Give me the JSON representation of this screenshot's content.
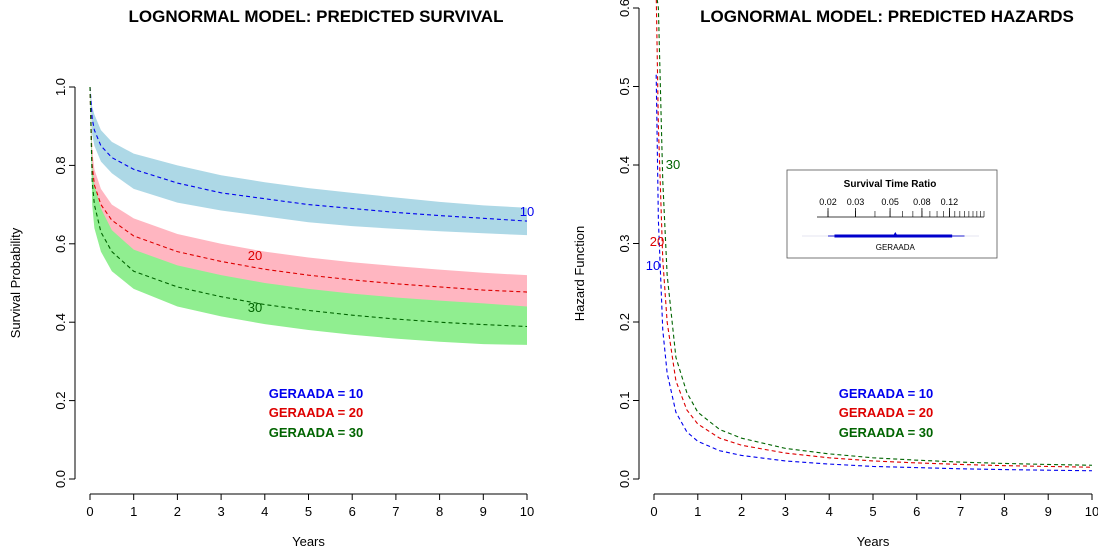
{
  "chart_data": [
    {
      "type": "line",
      "title": "LOGNORMAL MODEL: PREDICTED SURVIVAL",
      "xlabel": "Years",
      "ylabel": "Survival Probability",
      "xlim": [
        0,
        10
      ],
      "ylim": [
        0,
        1
      ],
      "xticks": [
        "0",
        "1",
        "2",
        "3",
        "4",
        "5",
        "6",
        "7",
        "8",
        "9",
        "10"
      ],
      "yticks": [
        "0.0",
        "0.2",
        "0.4",
        "0.6",
        "0.8",
        "1.0"
      ],
      "x": [
        0,
        0.05,
        0.1,
        0.25,
        0.5,
        1,
        2,
        3,
        4,
        5,
        6,
        7,
        8,
        9,
        10
      ],
      "series": [
        {
          "name": "GERAADA = 10",
          "color": "#0000ee",
          "band_color": "#add8e6",
          "curve_label": "10",
          "values": [
            1.0,
            0.92,
            0.89,
            0.85,
            0.82,
            0.79,
            0.755,
            0.73,
            0.715,
            0.7,
            0.69,
            0.68,
            0.672,
            0.665,
            0.658
          ],
          "lower": [
            1.0,
            0.88,
            0.85,
            0.81,
            0.78,
            0.74,
            0.705,
            0.685,
            0.67,
            0.655,
            0.645,
            0.638,
            0.632,
            0.627,
            0.622
          ],
          "upper": [
            1.0,
            0.95,
            0.93,
            0.89,
            0.86,
            0.83,
            0.8,
            0.775,
            0.757,
            0.742,
            0.73,
            0.718,
            0.707,
            0.698,
            0.692
          ]
        },
        {
          "name": "GERAADA = 20",
          "color": "#dd0000",
          "band_color": "#ffb6c1",
          "curve_label": "20",
          "values": [
            1.0,
            0.8,
            0.75,
            0.7,
            0.66,
            0.62,
            0.58,
            0.555,
            0.535,
            0.52,
            0.508,
            0.498,
            0.49,
            0.482,
            0.477
          ],
          "lower": [
            1.0,
            0.76,
            0.71,
            0.66,
            0.62,
            0.575,
            0.535,
            0.51,
            0.49,
            0.476,
            0.465,
            0.455,
            0.447,
            0.44,
            0.435
          ],
          "upper": [
            1.0,
            0.84,
            0.79,
            0.74,
            0.7,
            0.665,
            0.625,
            0.6,
            0.58,
            0.565,
            0.553,
            0.543,
            0.534,
            0.526,
            0.52
          ]
        },
        {
          "name": "GERAADA = 30",
          "color": "#006400",
          "band_color": "#90ee90",
          "curve_label": "30",
          "values": [
            1.0,
            0.76,
            0.7,
            0.63,
            0.58,
            0.53,
            0.49,
            0.465,
            0.445,
            0.43,
            0.418,
            0.408,
            0.4,
            0.394,
            0.389
          ],
          "lower": [
            1.0,
            0.7,
            0.64,
            0.58,
            0.53,
            0.485,
            0.44,
            0.415,
            0.395,
            0.38,
            0.368,
            0.358,
            0.35,
            0.344,
            0.342
          ],
          "upper": [
            1.0,
            0.8,
            0.75,
            0.69,
            0.635,
            0.585,
            0.545,
            0.52,
            0.5,
            0.485,
            0.473,
            0.463,
            0.455,
            0.448,
            0.44
          ]
        }
      ],
      "legend": [
        "GERAADA = 10",
        "GERAADA = 20",
        "GERAADA = 30"
      ],
      "legend_position": "bottom-right"
    },
    {
      "type": "line",
      "title": "LOGNORMAL MODEL: PREDICTED HAZARDS",
      "xlabel": "Years",
      "ylabel": "Hazard Function",
      "xlim": [
        0,
        10
      ],
      "ylim": [
        0,
        0.6
      ],
      "xticks": [
        "0",
        "1",
        "2",
        "3",
        "4",
        "5",
        "6",
        "7",
        "8",
        "9",
        "10"
      ],
      "yticks": [
        "0.0",
        "0.1",
        "0.2",
        "0.3",
        "0.4",
        "0.5",
        "0.6"
      ],
      "x": [
        0.05,
        0.1,
        0.2,
        0.3,
        0.5,
        0.75,
        1,
        1.5,
        2,
        3,
        4,
        5,
        6,
        7,
        8,
        9,
        10
      ],
      "series": [
        {
          "name": "GERAADA = 10",
          "color": "#0000ee",
          "curve_label": "10",
          "values": [
            0.515,
            0.33,
            0.19,
            0.135,
            0.085,
            0.06,
            0.048,
            0.036,
            0.03,
            0.023,
            0.019,
            0.016,
            0.0145,
            0.013,
            0.012,
            0.0112,
            0.0105
          ]
        },
        {
          "name": "GERAADA = 20",
          "color": "#dd0000",
          "curve_label": "20",
          "values": [
            0.62,
            0.45,
            0.28,
            0.2,
            0.125,
            0.088,
            0.07,
            0.052,
            0.043,
            0.033,
            0.027,
            0.023,
            0.0205,
            0.0185,
            0.017,
            0.016,
            0.015
          ]
        },
        {
          "name": "GERAADA = 30",
          "color": "#006400",
          "curve_label": "30",
          "values": [
            0.62,
            0.6,
            0.38,
            0.26,
            0.155,
            0.11,
            0.085,
            0.063,
            0.052,
            0.039,
            0.032,
            0.027,
            0.024,
            0.0215,
            0.0198,
            0.0185,
            0.0175
          ]
        }
      ],
      "legend": [
        "GERAADA = 10",
        "GERAADA = 20",
        "GERAADA = 30"
      ],
      "legend_position": "bottom-right",
      "inset": {
        "title": "Survival Time Ratio",
        "scale": "log",
        "ticks": [
          "0.02",
          "0.03",
          "0.05",
          "0.08",
          "0.12"
        ],
        "tick_values": [
          0.02,
          0.03,
          0.05,
          0.08,
          0.12
        ],
        "range": [
          0.017,
          0.2
        ],
        "variable": "GERAADA",
        "estimate": 0.054,
        "ci_inner": [
          0.022,
          0.125
        ],
        "ci_outer": [
          0.02,
          0.15
        ],
        "color": "#0000cc"
      }
    }
  ]
}
